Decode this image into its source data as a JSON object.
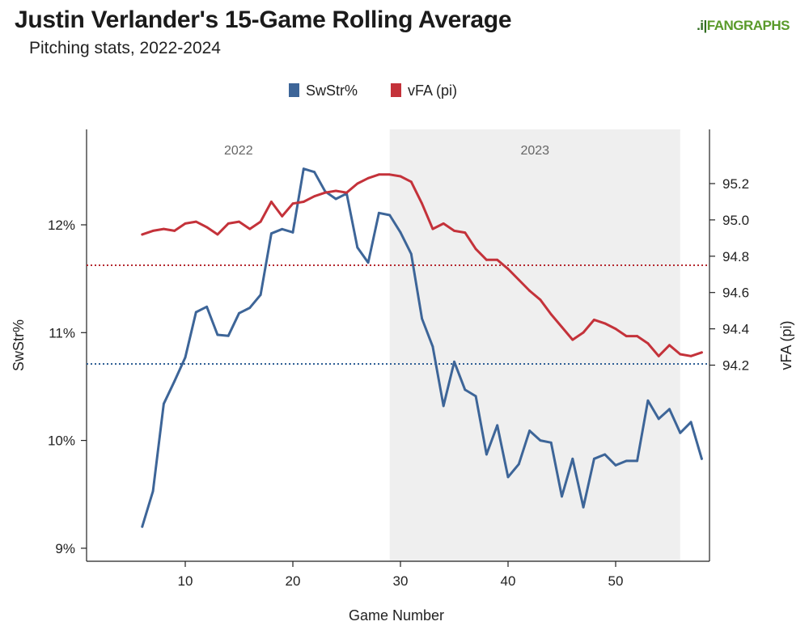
{
  "header": {
    "title": "Justin Verlander's 15-Game Rolling Average",
    "subtitle": "Pitching stats, 2022-2024",
    "logo_text": "FANGRAPHS",
    "logo_mark": ".i|"
  },
  "chart_data": {
    "type": "line",
    "title": "Justin Verlander's 15-Game Rolling Average",
    "subtitle": "Pitching stats, 2022-2024",
    "xlabel": "Game Number",
    "ylabel_left": "SwStr%",
    "ylabel_right": "vFA (pi)",
    "xlim": [
      6,
      58
    ],
    "ylim_left": [
      8.9,
      12.9
    ],
    "ylim_right": [
      94.18,
      95.42
    ],
    "x_ticks": [
      10,
      20,
      30,
      40,
      50
    ],
    "y_left_ticks": [
      9,
      10,
      11,
      12
    ],
    "y_left_tick_labels": [
      "9%",
      "10%",
      "11%",
      "12%"
    ],
    "y_right_ticks": [
      94.2,
      94.4,
      94.6,
      94.8,
      95.0,
      95.2
    ],
    "y_right_tick_labels": [
      "94.2",
      "94.4",
      "94.6",
      "94.8",
      "95.0",
      "95.2"
    ],
    "grid": false,
    "legend_placement": "top-center",
    "season_bands": [
      {
        "label": "2022",
        "x_start": 3,
        "x_end": 29,
        "shaded": false
      },
      {
        "label": "2023",
        "x_start": 29,
        "x_end": 56,
        "shaded": true
      }
    ],
    "reference_lines": [
      {
        "series": "SwStr%",
        "axis": "left",
        "value": 10.71,
        "color": "#2f5f95"
      },
      {
        "series": "vFA (pi)",
        "axis": "right",
        "value": 94.75,
        "color": "#b52a30"
      }
    ],
    "series": [
      {
        "name": "SwStr%",
        "axis": "left",
        "color": "#3d6598",
        "x": [
          6,
          7,
          8,
          9,
          10,
          11,
          12,
          13,
          14,
          15,
          16,
          17,
          18,
          19,
          20,
          21,
          22,
          23,
          24,
          25,
          26,
          27,
          28,
          29,
          30,
          31,
          32,
          33,
          34,
          35,
          36,
          37,
          38,
          39,
          40,
          41,
          42,
          43,
          44,
          45,
          46,
          47,
          48,
          49,
          50,
          51,
          52,
          53,
          54,
          55,
          56,
          57,
          58
        ],
        "values": [
          9.2,
          9.53,
          10.34,
          10.55,
          10.77,
          11.19,
          11.24,
          10.98,
          10.97,
          11.18,
          11.23,
          11.35,
          11.92,
          11.96,
          11.93,
          12.52,
          12.49,
          12.31,
          12.24,
          12.29,
          11.79,
          11.65,
          12.11,
          12.09,
          11.93,
          11.73,
          11.13,
          10.87,
          10.32,
          10.73,
          10.47,
          10.41,
          9.87,
          10.14,
          9.66,
          9.78,
          10.09,
          10.0,
          9.98,
          9.48,
          9.83,
          9.38,
          9.83,
          9.87,
          9.77,
          9.81,
          9.81,
          10.37,
          10.2,
          10.29,
          10.07,
          10.17,
          9.83
        ]
      },
      {
        "name": "vFA (pi)",
        "axis": "right",
        "color": "#c4323a",
        "x": [
          6,
          7,
          8,
          9,
          10,
          11,
          12,
          13,
          14,
          15,
          16,
          17,
          18,
          19,
          20,
          21,
          22,
          23,
          24,
          25,
          26,
          27,
          28,
          29,
          30,
          31,
          32,
          33,
          34,
          35,
          36,
          37,
          38,
          39,
          40,
          41,
          42,
          43,
          44,
          45,
          46,
          47,
          48,
          49,
          50,
          51,
          52,
          53,
          54,
          55,
          56,
          57,
          58
        ],
        "values": [
          94.92,
          94.94,
          94.95,
          94.94,
          94.98,
          94.99,
          94.96,
          94.92,
          94.98,
          94.99,
          94.95,
          94.99,
          95.1,
          95.02,
          95.09,
          95.1,
          95.13,
          95.15,
          95.16,
          95.15,
          95.2,
          95.23,
          95.25,
          95.25,
          95.24,
          95.21,
          95.09,
          94.95,
          94.98,
          94.94,
          94.93,
          94.84,
          94.78,
          94.78,
          94.73,
          94.67,
          94.61,
          94.56,
          94.48,
          94.41,
          94.34,
          94.38,
          94.45,
          94.43,
          94.4,
          94.36,
          94.36,
          94.32,
          94.25,
          94.31,
          94.26,
          94.25,
          94.27
        ]
      }
    ]
  }
}
